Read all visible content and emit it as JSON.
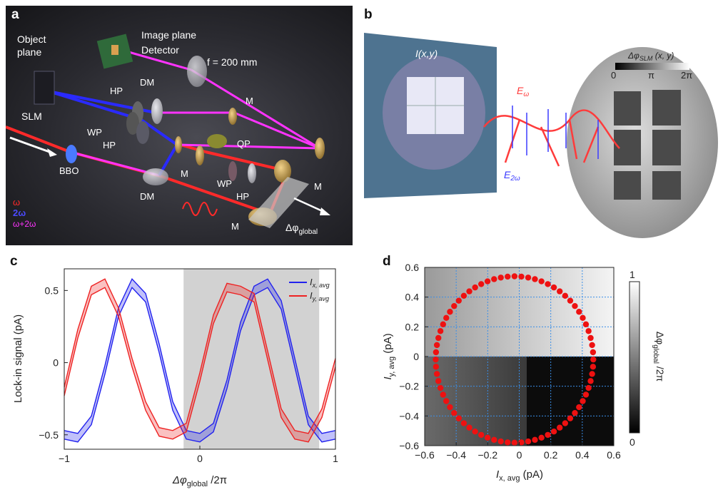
{
  "panel_a": {
    "letter": "a",
    "labels": {
      "object_plane_line1": "Object",
      "object_plane_line2": "plane",
      "image_plane": "Image plane",
      "detector": "Detector",
      "focal": "f = 200 mm",
      "slm": "SLM",
      "hp1": "HP",
      "hp2": "HP",
      "hp3": "HP",
      "dm1": "DM",
      "dm2": "DM",
      "wp1": "WP",
      "wp2": "WP",
      "qp": "QP",
      "m1": "M",
      "m2": "M",
      "m3": "M",
      "m4": "M",
      "m5": "M",
      "bbo": "BBO",
      "delta_phi": "Δφ",
      "delta_phi_sub": "global"
    },
    "legend": {
      "omega": "ω",
      "two_omega": "2ω",
      "sum": "ω+2ω"
    },
    "colors": {
      "omega": "#ff2a2a",
      "two_omega": "#2a2aff",
      "sum": "#ff33ff"
    }
  },
  "panel_b": {
    "letter": "b",
    "labels": {
      "current": "I(x,y)",
      "e_omega": "E",
      "e_omega_sub": "ω",
      "e_2omega": "E",
      "e_2omega_sub": "2ω",
      "colorbar_title": "Δφ",
      "colorbar_title_sub": "SLM",
      "colorbar_title_suffix": " (x, y)",
      "tick_0": "0",
      "tick_pi": "π",
      "tick_2pi": "2π"
    }
  },
  "panel_c": {
    "letter": "c",
    "ylabel": "Lock-in signal (pA)",
    "xlabel": "Δφ",
    "xlabel_sub": "global",
    "xlabel_suffix": " /2π",
    "xticks": [
      "−1",
      "0",
      "1"
    ],
    "yticks": [
      "0.5",
      "0",
      "−0.5"
    ],
    "legend": [
      {
        "label": "I",
        "sub": "x, avg",
        "color": "#2222ee"
      },
      {
        "label": "I",
        "sub": "y, avg",
        "color": "#ee2222"
      }
    ]
  },
  "panel_d": {
    "letter": "d",
    "ylabel": "I",
    "ylabel_sub": "y, avg",
    "ylabel_suffix": " (pA)",
    "xlabel": "I",
    "xlabel_sub": "x, avg",
    "xlabel_suffix": " (pA)",
    "xticks": [
      "−0.6",
      "−0.4",
      "−0.2",
      "0",
      "0.2",
      "0.4",
      "0.6"
    ],
    "yticks": [
      "0.6",
      "0.4",
      "0.2",
      "0",
      "−0.2",
      "−0.4",
      "−0.6"
    ],
    "colorbar_label": "Δφ",
    "colorbar_label_sub": "global",
    "colorbar_label_suffix": " /2π",
    "colorbar_ticks": [
      "1",
      "0"
    ]
  },
  "chart_data": [
    {
      "type": "line",
      "xlim": [
        -1,
        1
      ],
      "ylim": [
        -0.6,
        0.65
      ],
      "shaded_region_x": [
        -0.12,
        0.88
      ],
      "series": [
        {
          "name": "I x, avg",
          "color": "#2222ee",
          "x": [
            -1.0,
            -0.9,
            -0.8,
            -0.7,
            -0.6,
            -0.5,
            -0.4,
            -0.3,
            -0.2,
            -0.1,
            0.0,
            0.1,
            0.2,
            0.3,
            0.4,
            0.5,
            0.6,
            0.7,
            0.8,
            0.9,
            1.0
          ],
          "y": [
            -0.5,
            -0.52,
            -0.4,
            -0.05,
            0.35,
            0.55,
            0.45,
            0.1,
            -0.3,
            -0.5,
            -0.52,
            -0.45,
            -0.15,
            0.25,
            0.5,
            0.55,
            0.4,
            0.0,
            -0.4,
            -0.52,
            -0.5
          ]
        },
        {
          "name": "I y, avg",
          "color": "#ee2222",
          "x": [
            -1.0,
            -0.9,
            -0.8,
            -0.7,
            -0.6,
            -0.5,
            -0.4,
            -0.3,
            -0.2,
            -0.1,
            0.0,
            0.1,
            0.2,
            0.3,
            0.4,
            0.5,
            0.6,
            0.7,
            0.8,
            0.9,
            1.0
          ],
          "y": [
            -0.2,
            0.2,
            0.5,
            0.55,
            0.35,
            0.0,
            -0.3,
            -0.48,
            -0.5,
            -0.45,
            -0.1,
            0.3,
            0.52,
            0.5,
            0.45,
            0.05,
            -0.35,
            -0.5,
            -0.52,
            -0.35,
            0.0
          ]
        }
      ]
    },
    {
      "type": "scatter",
      "xlim": [
        -0.6,
        0.6
      ],
      "ylim": [
        -0.6,
        0.6
      ],
      "grid": true,
      "colorbar_range": [
        0,
        1
      ],
      "series": [
        {
          "name": "",
          "color": "#ee1111",
          "center": [
            -0.03,
            -0.02
          ],
          "radius_x": 0.5,
          "radius_y": 0.56,
          "n_points": 72
        }
      ]
    }
  ]
}
